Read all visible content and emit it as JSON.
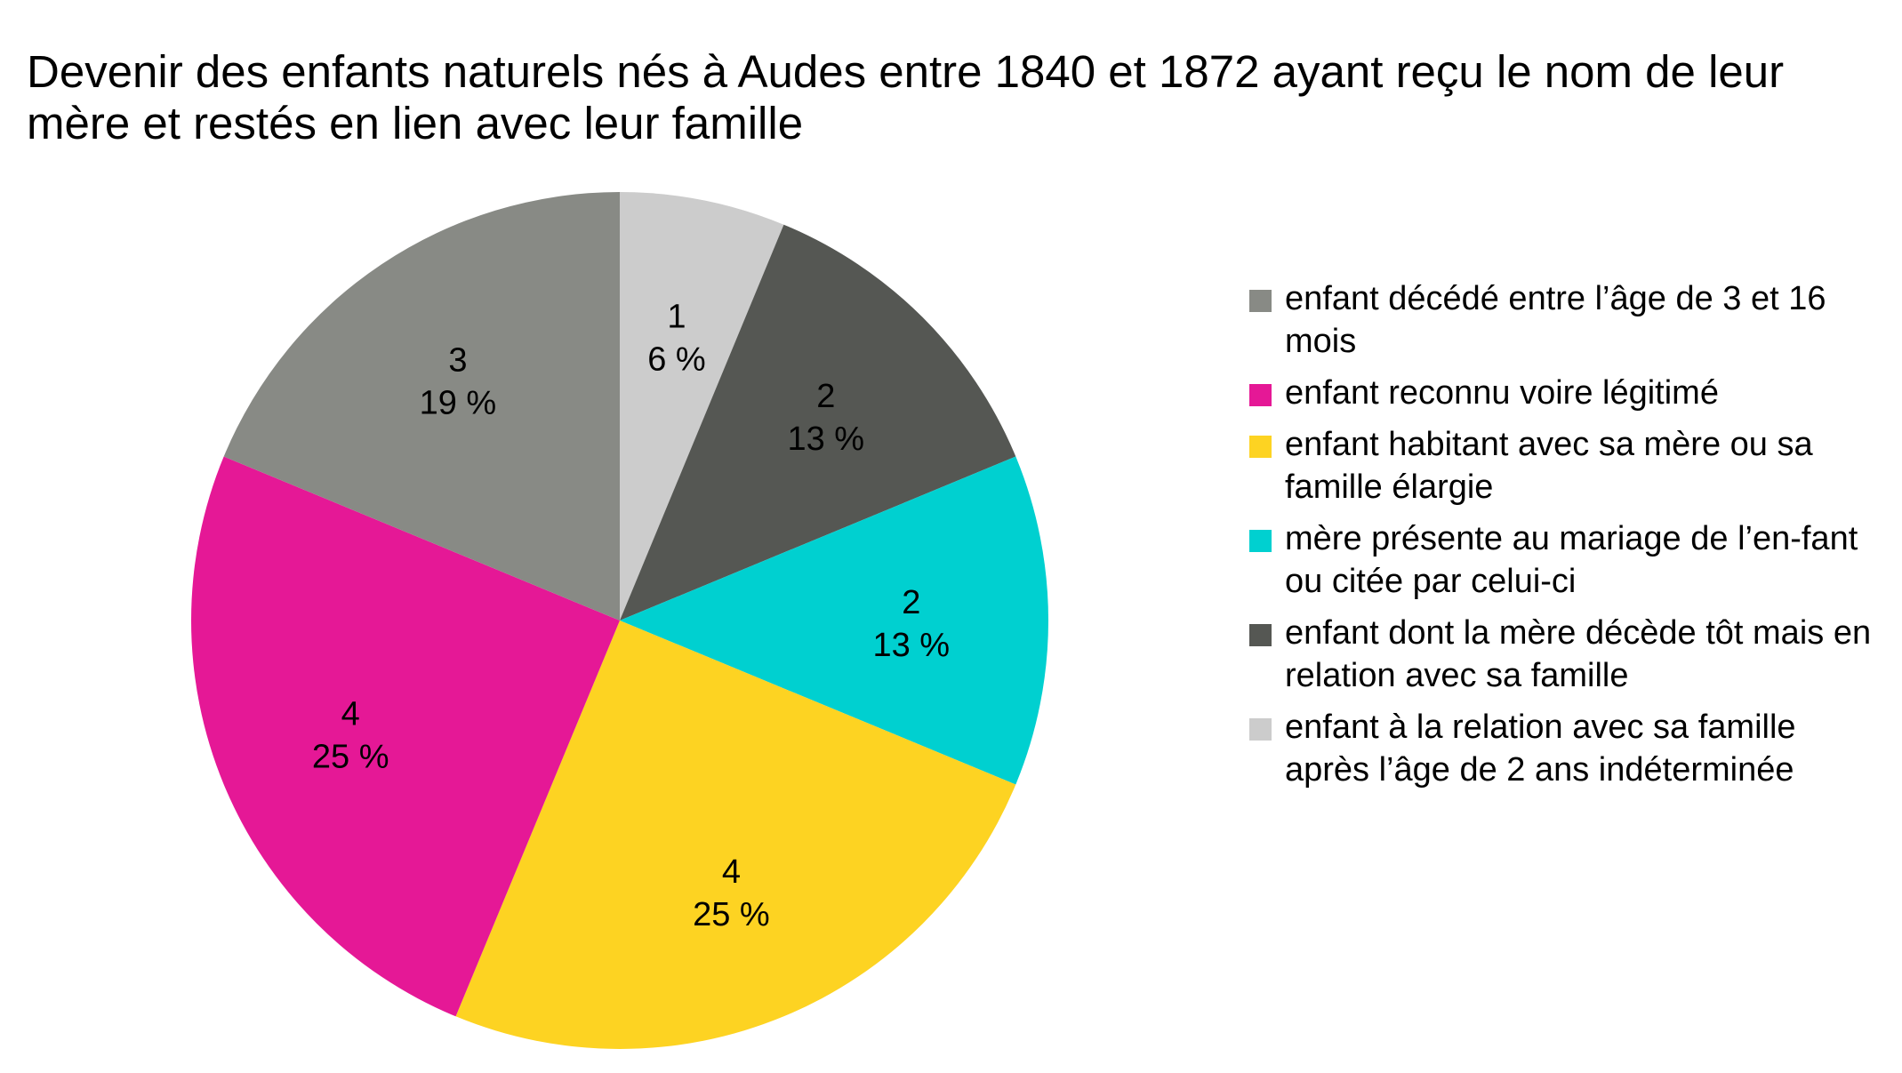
{
  "chart_data": {
    "type": "pie",
    "title": "Devenir des enfants naturels nés à Audes entre 1840 et 1872 ayant reçu le nom de leur mère et restés en lien avec leur famille",
    "legend_position": "right",
    "slices": [
      {
        "name": "enfant à la relation avec sa famille après l’âge de 2 ans indéterminée",
        "value": 1,
        "percent_label": "6 %",
        "color": "#cccccc"
      },
      {
        "name": "enfant dont la mère décède tôt mais en relation avec sa famille",
        "value": 2,
        "percent_label": "13 %",
        "color": "#555753"
      },
      {
        "name": "mère présente au mariage de l’en-fant ou citée par celui-ci",
        "value": 2,
        "percent_label": "13 %",
        "color": "#00d0d0"
      },
      {
        "name": "enfant habitant avec sa mère ou sa famille élargie",
        "value": 4,
        "percent_label": "25 %",
        "color": "#fdd322"
      },
      {
        "name": "enfant reconnu voire légitimé",
        "value": 4,
        "percent_label": "25 %",
        "color": "#e51896"
      },
      {
        "name": "enfant décédé entre l’âge de 3 et 16 mois",
        "value": 3,
        "percent_label": "19 %",
        "color": "#888a85"
      }
    ],
    "legend": [
      {
        "label": "enfant décédé entre l’âge de 3 et 16 mois",
        "color": "#888a85"
      },
      {
        "label": "enfant reconnu voire légitimé",
        "color": "#e51896"
      },
      {
        "label": "enfant habitant avec sa mère ou sa famille élargie",
        "color": "#fdd322"
      },
      {
        "label": "mère présente au mariage de l’en-fant ou citée par celui-ci",
        "color": "#00d0d0"
      },
      {
        "label": "enfant dont la mère décède tôt mais en relation avec sa famille",
        "color": "#555753"
      },
      {
        "label": "enfant à la relation avec sa famille après l’âge de 2 ans indéterminée",
        "color": "#cccccc"
      }
    ]
  }
}
